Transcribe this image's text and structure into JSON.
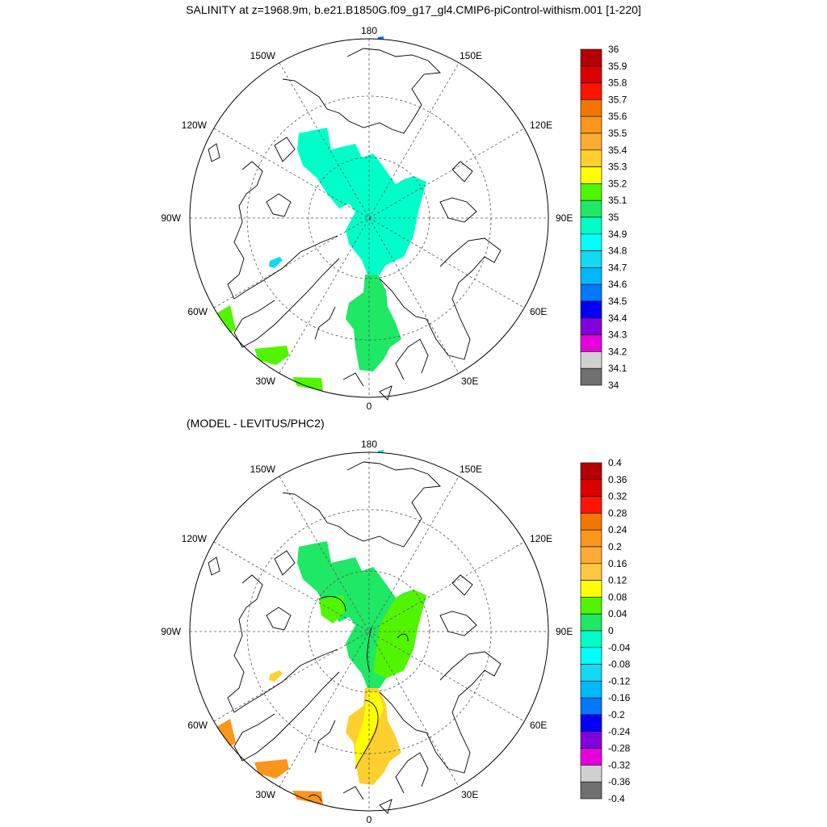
{
  "title": "SALINITY at z=1968.9m, b.e21.B1850G.f09_g17_gl4.CMIP6-piControl-withism.001 [1-220]",
  "subtitle": "(MODEL - LEVITUS/PHC2)",
  "longitude_labels": [
    "180",
    "150E",
    "120E",
    "90E",
    "60E",
    "30E",
    "0",
    "30W",
    "60W",
    "90W",
    "120W",
    "150W"
  ],
  "top_colorbar": {
    "labels": [
      "36",
      "35.9",
      "35.8",
      "35.7",
      "35.6",
      "35.5",
      "35.4",
      "35.3",
      "35.2",
      "35.1",
      "35",
      "34.9",
      "34.8",
      "34.7",
      "34.6",
      "34.5",
      "34.4",
      "34.3",
      "34.2",
      "34.1",
      "34"
    ],
    "colors": [
      "#b40000",
      "#dc0000",
      "#ff1400",
      "#f07800",
      "#fa9619",
      "#fcac35",
      "#fdd02f",
      "#ffff00",
      "#52f500",
      "#1ee864",
      "#00ffc8",
      "#00ffff",
      "#13d8f2",
      "#00b8fc",
      "#0078ff",
      "#0000f8",
      "#8200dc",
      "#e600dc",
      "#d0d0d0",
      "#707070"
    ]
  },
  "bottom_colorbar": {
    "labels": [
      "0.4",
      "0.36",
      "0.32",
      "0.28",
      "0.24",
      "0.2",
      "0.16",
      "0.12",
      "0.08",
      "0.04",
      "0",
      "-0.04",
      "-0.08",
      "-0.12",
      "-0.16",
      "-0.2",
      "-0.24",
      "-0.28",
      "-0.32",
      "-0.36",
      "-0.4"
    ],
    "colors": [
      "#b40000",
      "#dc0000",
      "#ff1400",
      "#f07800",
      "#fa9619",
      "#fcac35",
      "#fdc73f",
      "#ffff00",
      "#52f500",
      "#1ee864",
      "#00ffc8",
      "#00ffff",
      "#13d8f2",
      "#00b8fc",
      "#0078ff",
      "#0000f8",
      "#8200dc",
      "#e600dc",
      "#d0d0d0",
      "#707070"
    ]
  },
  "field_colors": {
    "top": {
      "arctic": "#00ffc8",
      "atlantic": "#1ee864",
      "labrador": "#52f500",
      "small_patch": "#13d8f2",
      "pole_blob": "#0078ff"
    },
    "bottom": {
      "arctic": "#1ee864",
      "bay": "#52f500",
      "atlantic": "#fdd02f",
      "atlantic_core": "#ffff00",
      "labrador": "#fa9619",
      "small_patch": "#fdd02f",
      "pole_blob": "#13d8f2"
    }
  }
}
